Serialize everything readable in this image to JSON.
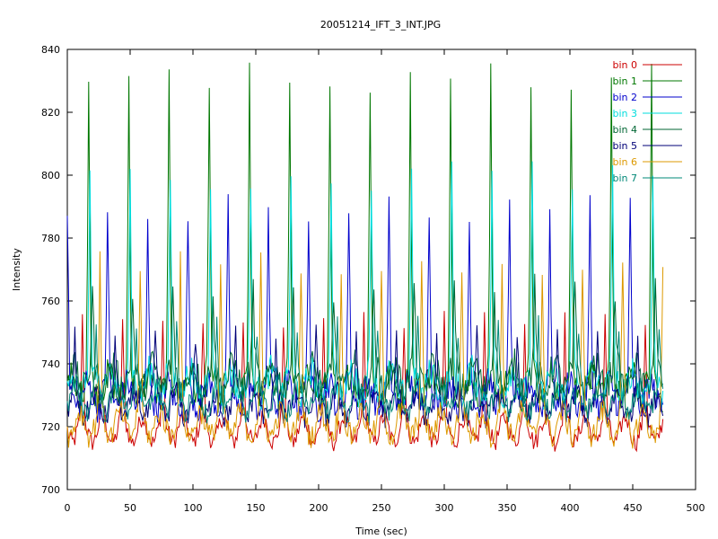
{
  "chart_data": {
    "type": "line",
    "title": "20051214_IFT_3_INT.JPG",
    "xlabel": "Time (sec)",
    "ylabel": "Intensity",
    "xlim": [
      0,
      500
    ],
    "ylim": [
      700,
      840
    ],
    "x_ticks": [
      0,
      50,
      100,
      150,
      200,
      250,
      300,
      350,
      400,
      450,
      500
    ],
    "y_ticks": [
      700,
      720,
      740,
      760,
      780,
      800,
      820,
      840
    ],
    "x_tick_labels": [
      "0",
      "50",
      "100",
      "150",
      "200",
      "250",
      "300",
      "350",
      "400",
      "450",
      "500"
    ],
    "y_tick_labels": [
      "700",
      "720",
      "740",
      "760",
      "780",
      "800",
      "820",
      "840"
    ],
    "grid": false,
    "legend_position": "top-right",
    "x_range": [
      0,
      474
    ],
    "period": 32,
    "series": [
      {
        "name": "bin 0",
        "color": "#cc0000",
        "base": 719,
        "spike_peak": 750,
        "spike_offset": 12,
        "spread": 3,
        "description_level": "low"
      },
      {
        "name": "bin 1",
        "color": "#007700",
        "base": 733,
        "spike_peak": 827,
        "spike_offset": 17,
        "spread": 5,
        "description_level": "high"
      },
      {
        "name": "bin 2",
        "color": "#0000cc",
        "base": 730,
        "spike_peak": 786,
        "spike_offset": 32,
        "spread": 5,
        "description_level": "mid"
      },
      {
        "name": "bin 3",
        "color": "#00dddd",
        "base": 734,
        "spike_peak": 796,
        "spike_offset": 18,
        "spread": 5,
        "description_level": "mid"
      },
      {
        "name": "bin 4",
        "color": "#006633",
        "base": 736,
        "spike_peak": 760,
        "spike_offset": 20,
        "spread": 5,
        "description_level": "mid"
      },
      {
        "name": "bin 5",
        "color": "#000077",
        "base": 727,
        "spike_peak": 745,
        "spike_offset": 6,
        "spread": 4,
        "description_level": "mid"
      },
      {
        "name": "bin 6",
        "color": "#dd9900",
        "base": 721,
        "spike_peak": 768,
        "spike_offset": 26,
        "spread": 4,
        "description_level": "low"
      },
      {
        "name": "bin 7",
        "color": "#008877",
        "base": 729,
        "spike_peak": 748,
        "spike_offset": 23,
        "spread": 4,
        "description_level": "mid"
      }
    ]
  }
}
